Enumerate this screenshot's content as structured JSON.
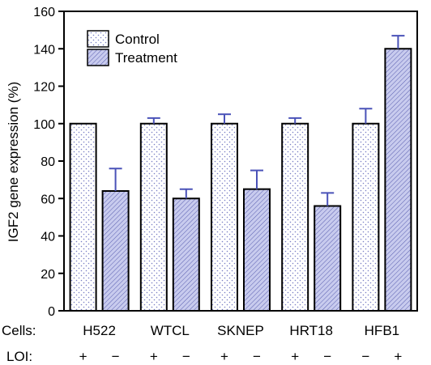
{
  "chart_data": {
    "type": "bar",
    "ylabel": "IGF2 gene expression (%)",
    "ylim": [
      0,
      160
    ],
    "yticks": [
      0,
      20,
      40,
      60,
      80,
      100,
      120,
      140,
      160
    ],
    "categories": [
      "H522",
      "WTCL",
      "SKNEP",
      "HRT18",
      "HFB1"
    ],
    "series": [
      {
        "name": "Control",
        "values": [
          100,
          100,
          100,
          100,
          100
        ],
        "errors": [
          0,
          3,
          5,
          3,
          8
        ]
      },
      {
        "name": "Treatment",
        "values": [
          64,
          60,
          65,
          56,
          140
        ],
        "errors": [
          12,
          5,
          10,
          7,
          7
        ]
      }
    ],
    "rows": {
      "cells_label": "Cells:",
      "loi_label": "LOI:",
      "loi": [
        [
          "+",
          "−"
        ],
        [
          "+",
          "−"
        ],
        [
          "+",
          "−"
        ],
        [
          "+",
          "−"
        ],
        [
          "−",
          "+"
        ]
      ]
    },
    "legend_position": "top-left",
    "grid": false,
    "colors": {
      "control_pattern": "#7a7fc4",
      "treatment_fill": "#c8cbee",
      "treatment_hatch": "#5a5fb0",
      "error_bar": "#4a52b8"
    }
  }
}
